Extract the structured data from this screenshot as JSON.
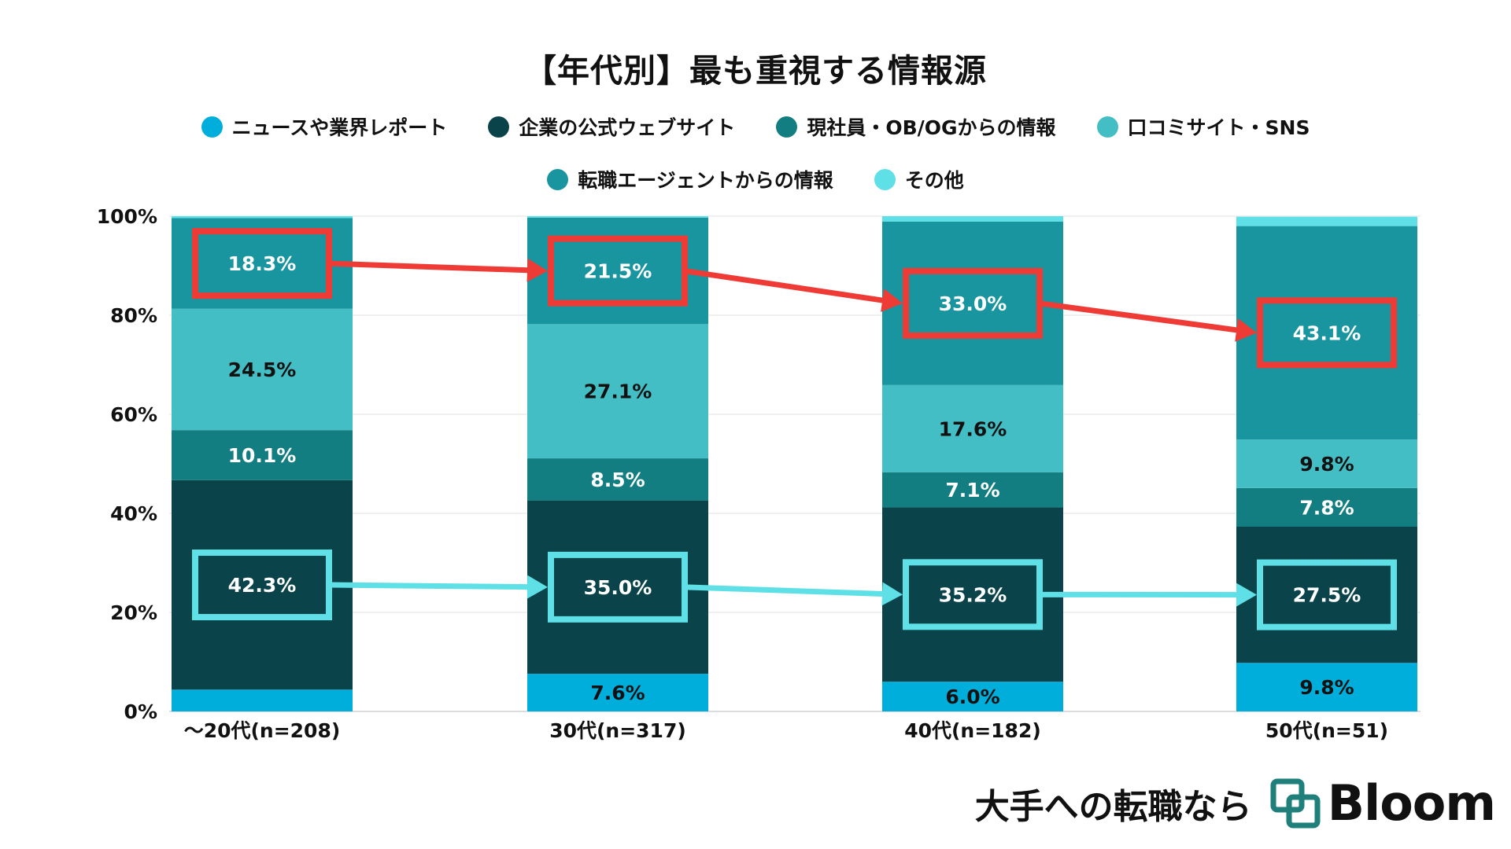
{
  "chart_data": {
    "type": "bar",
    "stacked": true,
    "title": "【年代別】最も重視する情報源",
    "categories": [
      "〜20代(n=208)",
      "30代(n=317)",
      "40代(n=182)",
      "50代(n=51)"
    ],
    "y_ticks": [
      "0%",
      "20%",
      "40%",
      "60%",
      "80%",
      "100%"
    ],
    "ylim": [
      0,
      100
    ],
    "grid": true,
    "legend_position": "top",
    "series": [
      {
        "name": "ニュースや業界レポート",
        "color": "#00AEDB",
        "values": [
          4.4,
          7.6,
          6.0,
          9.8
        ],
        "labels": [
          "",
          "7.6%",
          "6.0%",
          "9.8%"
        ],
        "label_color": "#111111"
      },
      {
        "name": "企業の公式ウェブサイト",
        "color": "#0A434A",
        "values": [
          42.3,
          35.0,
          35.2,
          27.5
        ],
        "labels": [
          "42.3%",
          "35.0%",
          "35.2%",
          "27.5%"
        ],
        "label_color": "#ffffff"
      },
      {
        "name": "現社員・OB/OGからの情報",
        "color": "#137E81",
        "values": [
          10.1,
          8.5,
          7.1,
          7.8
        ],
        "labels": [
          "10.1%",
          "8.5%",
          "7.1%",
          "7.8%"
        ],
        "label_color": "#ffffff"
      },
      {
        "name": "口コミサイト・SNS",
        "color": "#42BEC4",
        "values": [
          24.5,
          27.1,
          17.6,
          9.8
        ],
        "labels": [
          "24.5%",
          "27.1%",
          "17.6%",
          "9.8%"
        ],
        "label_color": "#111111"
      },
      {
        "name": "転職エージェントからの情報",
        "color": "#18959F",
        "values": [
          18.3,
          21.5,
          33.0,
          43.1
        ],
        "labels": [
          "18.3%",
          "21.5%",
          "33.0%",
          "43.1%"
        ],
        "label_color": "#ffffff"
      },
      {
        "name": "その他",
        "color": "#5EE0E6",
        "values": [
          0.4,
          0.3,
          1.1,
          1.9
        ],
        "labels": [
          "",
          "",
          "",
          ""
        ],
        "label_color": "#111111"
      }
    ],
    "highlights": [
      {
        "series_index": 4,
        "color": "#EF3B36"
      },
      {
        "series_index": 1,
        "color": "#5EE0E6"
      }
    ]
  },
  "branding": {
    "tagline": "大手への転職なら",
    "name": "Bloom",
    "logo_icon": "overlapping-squares-icon",
    "logo_color": "#1E7F7B"
  }
}
